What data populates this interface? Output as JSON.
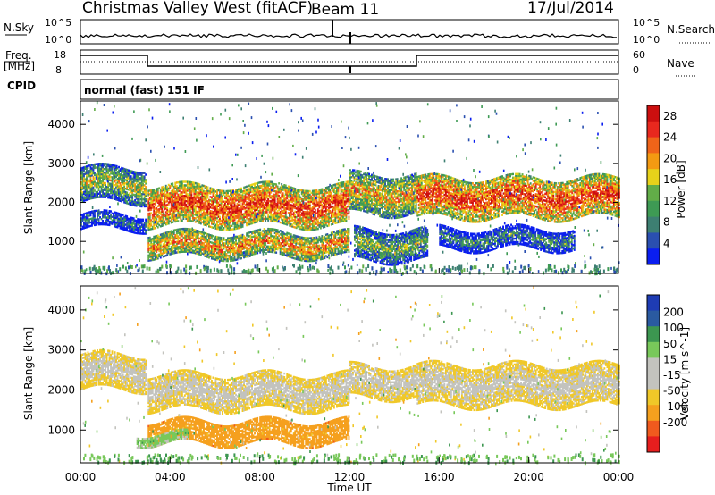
{
  "header": {
    "station": "Christmas Valley West (fitACF)",
    "beam": "Beam 11",
    "date": "17/Jul/2014"
  },
  "top_panel": {
    "left_label": "N.Sky",
    "left_ticks": [
      "10^5",
      "10^0"
    ],
    "right_ticks": [
      "10^5",
      "10^0"
    ],
    "right_label": "N.Search"
  },
  "freq_panel": {
    "left_label_1": "Freq.",
    "left_label_2": "[MHz]",
    "left_ticks": [
      "18",
      "8"
    ],
    "right_ticks": [
      "60",
      "0"
    ],
    "right_label": "Nave"
  },
  "cpid": {
    "label": "CPID",
    "value": "normal (fast) 151 IF"
  },
  "colors": {
    "power_scale": [
      "#0a1ef0",
      "#2a4fb0",
      "#3d7f72",
      "#3e9a54",
      "#62ad48",
      "#e7d21a",
      "#f39a12",
      "#ef6419",
      "#e8281e",
      "#cc0f0f"
    ],
    "velocity_scale": [
      "#e61e1e",
      "#f05a1e",
      "#f5a01e",
      "#f0c828",
      "#c3c3be",
      "#c3c3be",
      "#78c85a",
      "#3c9650",
      "#2a5aa0",
      "#1e3cb4"
    ]
  },
  "chart_data": [
    {
      "type": "heatmap",
      "title": "",
      "xlabel": "Time UT",
      "ylabel": "Slant Range [km]",
      "xlim": [
        "00:00",
        "24:00"
      ],
      "ylim": [
        180,
        4600
      ],
      "x_ticks": [
        "00:00",
        "04:00",
        "08:00",
        "12:00",
        "16:00",
        "20:00",
        "00:00"
      ],
      "y_ticks": [
        1000,
        2000,
        3000,
        4000
      ],
      "colorbar": {
        "label": "Power [dB]",
        "ticks": [
          4,
          8,
          12,
          16,
          20,
          24,
          28
        ],
        "range": [
          0,
          30
        ]
      },
      "bands": [
        {
          "t0": 0.0,
          "t1": 2.9,
          "r0": 2000,
          "r1": 2900,
          "value": 16
        },
        {
          "t0": 0.0,
          "t1": 2.9,
          "r0": 1300,
          "r1": 1700,
          "value": 8
        },
        {
          "t0": 3.0,
          "t1": 12.0,
          "r0": 1400,
          "r1": 2400,
          "value": 26
        },
        {
          "t0": 3.0,
          "t1": 12.0,
          "r0": 600,
          "r1": 1200,
          "value": 22
        },
        {
          "t0": 12.0,
          "t1": 15.0,
          "r0": 1700,
          "r1": 2700,
          "value": 20
        },
        {
          "t0": 12.2,
          "t1": 15.5,
          "r0": 500,
          "r1": 1300,
          "value": 14
        },
        {
          "t0": 15.0,
          "t1": 24.0,
          "r0": 1600,
          "r1": 2600,
          "value": 26
        },
        {
          "t0": 16.0,
          "t1": 22.0,
          "r0": 800,
          "r1": 1300,
          "value": 10
        }
      ]
    },
    {
      "type": "heatmap",
      "title": "",
      "xlabel": "Time UT",
      "ylabel": "Slant Range [km]",
      "xlim": [
        "00:00",
        "24:00"
      ],
      "ylim": [
        180,
        4600
      ],
      "x_ticks": [
        "00:00",
        "04:00",
        "08:00",
        "12:00",
        "16:00",
        "20:00",
        "00:00"
      ],
      "y_ticks": [
        1000,
        2000,
        3000,
        4000
      ],
      "colorbar": {
        "label": "Velocity [m s^-1]",
        "ticks": [
          200,
          100,
          50,
          15,
          -15,
          -50,
          -100,
          -200
        ]
      },
      "bands": [
        {
          "t0": 0.0,
          "t1": 2.9,
          "r0": 2000,
          "r1": 2900,
          "value": 0
        },
        {
          "t0": 3.0,
          "t1": 12.0,
          "r0": 1500,
          "r1": 2400,
          "value": 0
        },
        {
          "t0": 3.0,
          "t1": 12.0,
          "r0": 650,
          "r1": 1200,
          "value": -60
        },
        {
          "t0": 12.0,
          "t1": 15.0,
          "r0": 1800,
          "r1": 2600,
          "value": 0
        },
        {
          "t0": 15.0,
          "t1": 24.0,
          "r0": 1600,
          "r1": 2600,
          "value": 0
        },
        {
          "t0": 2.5,
          "t1": 4.8,
          "r0": 650,
          "r1": 900,
          "value": 40
        }
      ]
    }
  ]
}
